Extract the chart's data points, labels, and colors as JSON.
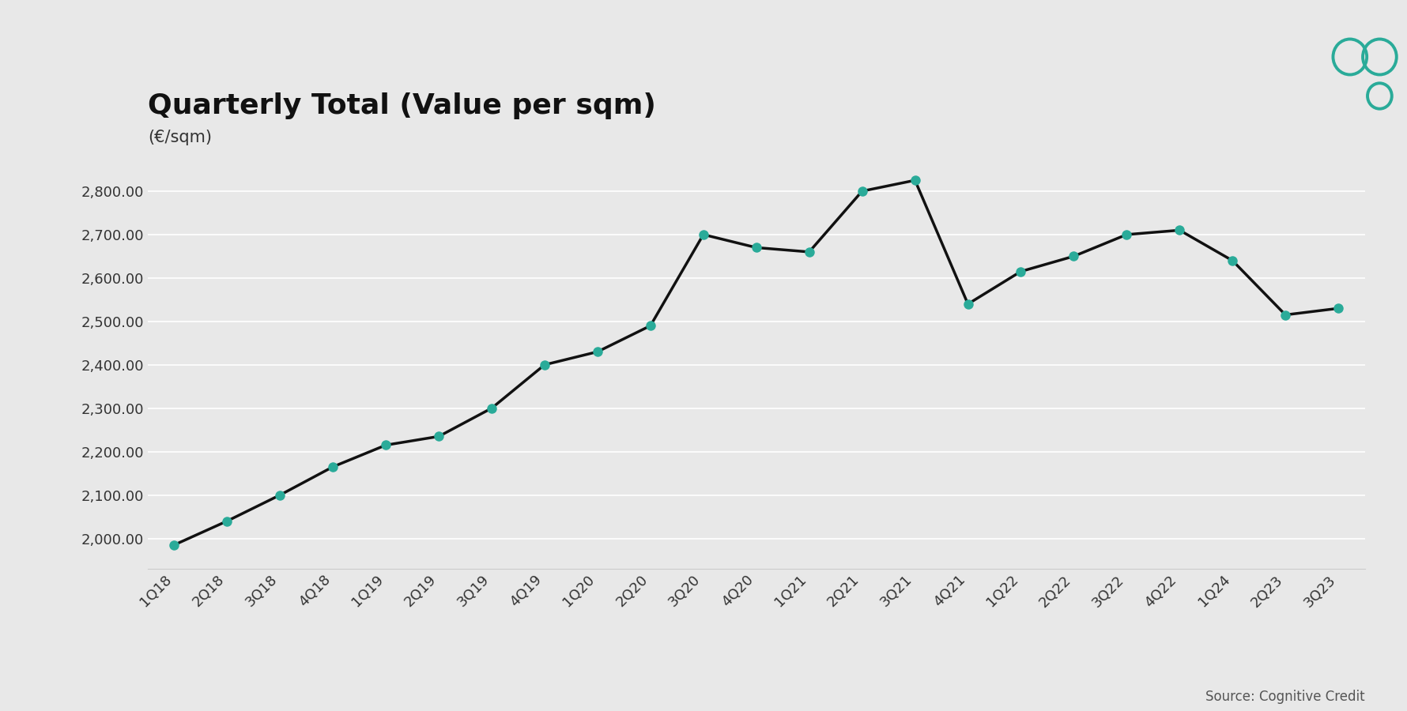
{
  "title": "Quarterly Total (Value per sqm)",
  "subtitle": "(€/sqm)",
  "source": "Source: Cognitive Credit",
  "background_color": "#e8e8e8",
  "line_color": "#111111",
  "marker_color": "#2aab99",
  "categories": [
    "1Q18",
    "2Q18",
    "3Q18",
    "4Q18",
    "1Q19",
    "2Q19",
    "3Q19",
    "4Q19",
    "1Q20",
    "2Q20",
    "3Q20",
    "4Q20",
    "1Q21",
    "2Q21",
    "3Q21",
    "4Q21",
    "1Q22",
    "2Q22",
    "3Q22",
    "4Q22",
    "1Q24",
    "2Q23",
    "3Q23"
  ],
  "values": [
    1985,
    2040,
    2100,
    2165,
    2215,
    2235,
    2300,
    2400,
    2430,
    2490,
    2700,
    2670,
    2660,
    2800,
    2825,
    2540,
    2615,
    2650,
    2700,
    2710,
    2640,
    2515,
    2530
  ],
  "ylim": [
    1930,
    2880
  ],
  "yticks": [
    2000,
    2100,
    2200,
    2300,
    2400,
    2500,
    2600,
    2700,
    2800
  ],
  "title_fontsize": 26,
  "subtitle_fontsize": 15,
  "tick_fontsize": 13,
  "source_fontsize": 12,
  "marker_size": 9,
  "line_width": 2.5,
  "logo_color": "#2aab99",
  "grid_color": "#ffffff",
  "spine_color": "#cccccc",
  "tick_color": "#333333"
}
